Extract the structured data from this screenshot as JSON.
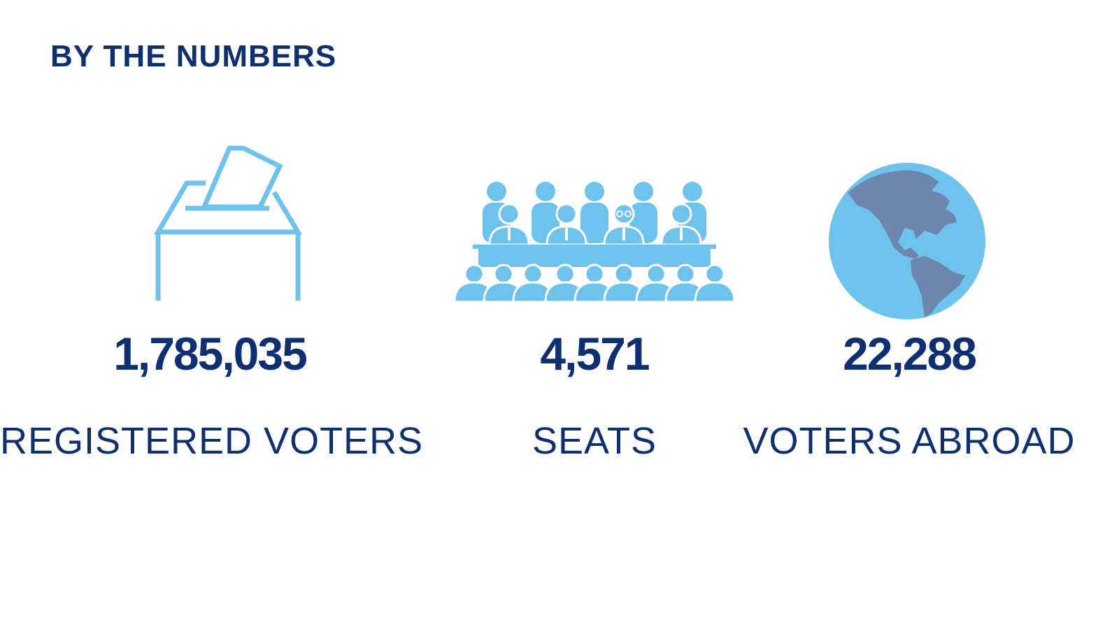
{
  "heading": "BY THE NUMBERS",
  "colors": {
    "navy": "#0e2f70",
    "light_blue": "#6ec3ec",
    "land": "#6c86ac"
  },
  "stats": [
    {
      "icon": "ballot-box-icon",
      "value": "1,785,035",
      "label": "REGISTERED VOTERS"
    },
    {
      "icon": "assembly-seats-icon",
      "value": "4,571",
      "label": "SEATS"
    },
    {
      "icon": "globe-icon",
      "value": "22,288",
      "label": "VOTERS ABROAD"
    }
  ]
}
